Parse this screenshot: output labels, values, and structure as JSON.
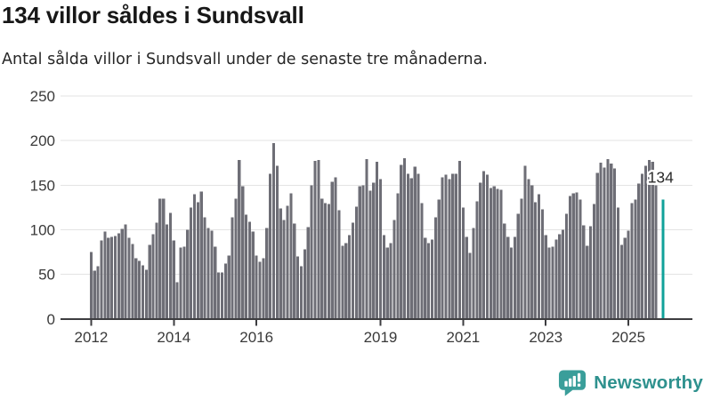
{
  "title": "134 villor såldes i Sundsvall",
  "subtitle": "Antal sålda villor i Sundsvall under de senaste tre månaderna.",
  "branding": {
    "name": "Newsworthy",
    "icon": "newsworthy-chart-bubble-icon",
    "text_color": "#2E918E",
    "icon_color": "#3A9E9A"
  },
  "colors": {
    "bar": "#6E6E76",
    "highlight": "#10A29A",
    "grid": "#E3E3E3",
    "axis": "#3D3D40",
    "tick_text": "#3A3A3A",
    "annotation_text": "#2B2B2B",
    "annotation_halo": "#FFFFFF"
  },
  "chart_data": {
    "type": "bar",
    "title": "134 villor såldes i Sundsvall",
    "subtitle": "Antal sålda villor i Sundsvall under de senaste tre månaderna.",
    "xlabel": "",
    "ylabel": "",
    "x_start": "2012-01",
    "frequency": "monthly",
    "ylim": [
      0,
      250
    ],
    "yticks": [
      0,
      50,
      100,
      150,
      200,
      250
    ],
    "xticks": [
      2012,
      2014,
      2016,
      2019,
      2021,
      2023,
      2025
    ],
    "grid": true,
    "legend": false,
    "highlight": {
      "index": 166,
      "value": 134,
      "label": "134"
    },
    "values": [
      75,
      54,
      59,
      88,
      98,
      91,
      92,
      93,
      96,
      101,
      106,
      91,
      84,
      68,
      65,
      60,
      55,
      83,
      95,
      108,
      135,
      135,
      106,
      119,
      88,
      41,
      80,
      81,
      100,
      125,
      140,
      131,
      143,
      114,
      102,
      99,
      81,
      52,
      52,
      62,
      71,
      114,
      135,
      178,
      149,
      117,
      109,
      98,
      71,
      64,
      68,
      102,
      163,
      197,
      172,
      124,
      111,
      127,
      141,
      107,
      70,
      59,
      78,
      103,
      150,
      177,
      178,
      135,
      130,
      129,
      154,
      159,
      122,
      82,
      85,
      94,
      108,
      126,
      149,
      150,
      179,
      144,
      153,
      176,
      157,
      94,
      80,
      85,
      111,
      141,
      173,
      180,
      163,
      158,
      171,
      163,
      130,
      91,
      85,
      89,
      114,
      134,
      159,
      162,
      157,
      163,
      163,
      177,
      125,
      92,
      74,
      102,
      132,
      153,
      166,
      162,
      147,
      149,
      146,
      145,
      107,
      92,
      80,
      92,
      118,
      135,
      172,
      157,
      150,
      131,
      140,
      123,
      94,
      80,
      81,
      89,
      95,
      100,
      118,
      138,
      141,
      142,
      134,
      105,
      82,
      104,
      129,
      164,
      175,
      170,
      179,
      174,
      169,
      125,
      83,
      91,
      99,
      130,
      134,
      152,
      163,
      172,
      178,
      176,
      150,
      null,
      134
    ]
  }
}
